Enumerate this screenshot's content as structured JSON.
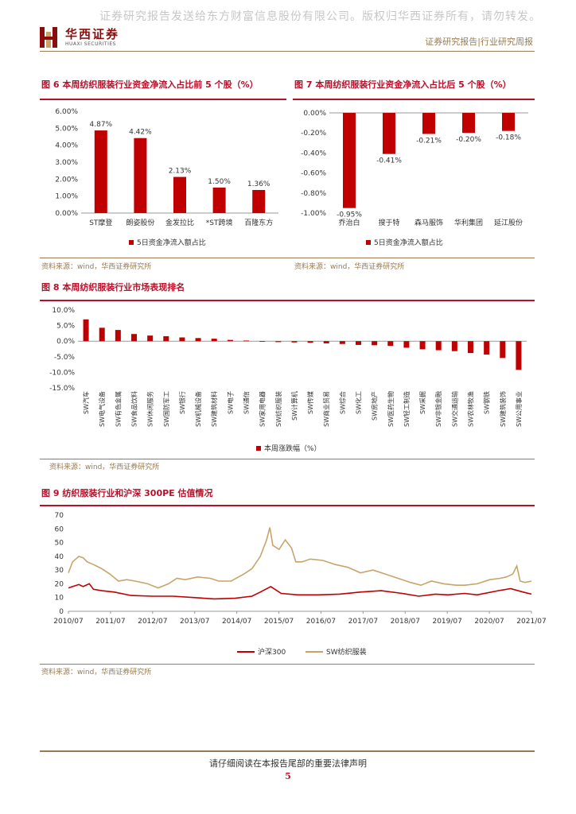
{
  "header": {
    "watermark": "证券研究报告发送给东方财富信息股份有限公司。版权归华西证券所有，请勿转发。",
    "logo_cn": "华西证券",
    "logo_en": "HUAXI SECURITIES",
    "report_type": "证券研究报告|行业研究周报"
  },
  "colors": {
    "red": "#c00000",
    "tan": "#c8a46b",
    "gold": "#9a7b50"
  },
  "figures": {
    "fig6": {
      "title": "图 6 本周纺织服装行业资金净流入占比前 5 个股（%）",
      "source": "资料来源：wind，华西证券研究所"
    },
    "fig7": {
      "title": "图 7 本周纺织服装行业资金净流入占比后 5 个股（%）",
      "source": "资料来源：wind，华西证券研究所"
    },
    "fig8": {
      "title": "图 8 本周纺织服装行业市场表现排名",
      "source": "资料来源：wind，华西证券研究所"
    },
    "fig9": {
      "title": "图 9 纺织服装行业和沪深 300PE 估值情况",
      "source": "资料来源：wind，华西证券研究所"
    }
  },
  "chart_data": [
    {
      "id": "fig6",
      "type": "bar",
      "categories": [
        "ST摩登",
        "朗姿股份",
        "金发拉比",
        "*ST跨境",
        "百隆东方"
      ],
      "values": [
        4.87,
        4.42,
        2.13,
        1.5,
        1.36
      ],
      "data_labels": [
        "4.87%",
        "4.42%",
        "2.13%",
        "1.50%",
        "1.36%"
      ],
      "yticks": [
        "0.00%",
        "1.00%",
        "2.00%",
        "3.00%",
        "4.00%",
        "5.00%",
        "6.00%"
      ],
      "ylim": [
        0,
        6
      ],
      "legend": "5日资金净流入额占比"
    },
    {
      "id": "fig7",
      "type": "bar",
      "categories": [
        "乔治白",
        "搜于特",
        "森马服饰",
        "华利集团",
        "延江股份"
      ],
      "values": [
        -0.95,
        -0.41,
        -0.21,
        -0.2,
        -0.18
      ],
      "data_labels": [
        "-0.95%",
        "-0.41%",
        "-0.21%",
        "-0.20%",
        "-0.18%"
      ],
      "yticks": [
        "0.00%",
        "-0.20%",
        "-0.40%",
        "-0.60%",
        "-0.80%",
        "-1.00%"
      ],
      "ylim": [
        -1,
        0
      ],
      "legend": "5日资金净流入额占比"
    },
    {
      "id": "fig8",
      "type": "bar",
      "categories": [
        "SW汽车",
        "SW电气设备",
        "SW有色金属",
        "SW食品饮料",
        "SW休闲服务",
        "SW国防军工",
        "SW银行",
        "SW机械设备",
        "SW建筑材料",
        "SW电子",
        "SW通信",
        "SW家用电器",
        "SW纺织服装",
        "SW计算机",
        "SW传媒",
        "SW商业贸易",
        "SW综合",
        "SW化工",
        "SW房地产",
        "SW医药生物",
        "SW轻工制造",
        "SW采掘",
        "SW非银金融",
        "SW交通运输",
        "SW农林牧渔",
        "SW钢铁",
        "SW建筑装饰",
        "SW公用事业"
      ],
      "values": [
        7.0,
        4.3,
        3.6,
        2.3,
        1.8,
        1.6,
        1.2,
        1.0,
        0.8,
        0.4,
        0.2,
        -0.2,
        -0.3,
        -0.4,
        -0.5,
        -0.7,
        -0.9,
        -1.2,
        -1.3,
        -1.5,
        -2.1,
        -2.6,
        -2.9,
        -3.2,
        -3.8,
        -4.3,
        -5.4,
        -9.2
      ],
      "yticks": [
        "10.0%",
        "5.0%",
        "0.0%",
        "-5.0%",
        "-10.0%",
        "-15.0%"
      ],
      "ylim": [
        -15,
        10
      ],
      "legend": "本周涨跌幅（%）"
    },
    {
      "id": "fig9",
      "type": "line",
      "x_ticks": [
        "2010/07",
        "2011/07",
        "2012/07",
        "2013/07",
        "2014/07",
        "2015/07",
        "2016/07",
        "2017/07",
        "2018/07",
        "2019/07",
        "2020/07",
        "2021/07"
      ],
      "yticks": [
        "0",
        "10",
        "20",
        "30",
        "40",
        "50",
        "60",
        "70"
      ],
      "ylim": [
        0,
        70
      ],
      "xlim": [
        2010.5,
        2021.6
      ],
      "series": [
        {
          "name": "沪深300",
          "points": [
            [
              2010.5,
              17
            ],
            [
              2010.6,
              18
            ],
            [
              2010.75,
              19.5
            ],
            [
              2010.85,
              18
            ],
            [
              2011.0,
              20
            ],
            [
              2011.1,
              16
            ],
            [
              2011.3,
              15
            ],
            [
              2011.6,
              14
            ],
            [
              2012.0,
              11.5
            ],
            [
              2012.5,
              11
            ],
            [
              2013.0,
              11
            ],
            [
              2013.5,
              10
            ],
            [
              2014.0,
              9
            ],
            [
              2014.5,
              9.5
            ],
            [
              2014.9,
              11
            ],
            [
              2015.1,
              14
            ],
            [
              2015.35,
              18
            ],
            [
              2015.45,
              16
            ],
            [
              2015.6,
              13
            ],
            [
              2016.0,
              12
            ],
            [
              2016.5,
              12
            ],
            [
              2017.0,
              12.5
            ],
            [
              2017.5,
              14
            ],
            [
              2018.0,
              15
            ],
            [
              2018.5,
              13
            ],
            [
              2018.9,
              11
            ],
            [
              2019.3,
              12.5
            ],
            [
              2019.6,
              12
            ],
            [
              2020.0,
              13
            ],
            [
              2020.3,
              12
            ],
            [
              2020.8,
              15
            ],
            [
              2021.1,
              16.5
            ],
            [
              2021.4,
              14
            ],
            [
              2021.6,
              12.5
            ]
          ]
        },
        {
          "name": "SW纺织服装",
          "points": [
            [
              2010.5,
              28
            ],
            [
              2010.6,
              36
            ],
            [
              2010.75,
              40
            ],
            [
              2010.85,
              39
            ],
            [
              2010.95,
              36
            ],
            [
              2011.1,
              34
            ],
            [
              2011.3,
              31
            ],
            [
              2011.5,
              27
            ],
            [
              2011.7,
              22
            ],
            [
              2011.9,
              23
            ],
            [
              2012.1,
              22
            ],
            [
              2012.4,
              20
            ],
            [
              2012.65,
              17
            ],
            [
              2012.9,
              20
            ],
            [
              2013.1,
              24
            ],
            [
              2013.3,
              23
            ],
            [
              2013.6,
              25
            ],
            [
              2013.9,
              24
            ],
            [
              2014.1,
              22
            ],
            [
              2014.4,
              22
            ],
            [
              2014.7,
              27
            ],
            [
              2014.9,
              31
            ],
            [
              2015.1,
              40
            ],
            [
              2015.25,
              52
            ],
            [
              2015.33,
              61
            ],
            [
              2015.4,
              48
            ],
            [
              2015.55,
              45
            ],
            [
              2015.7,
              52
            ],
            [
              2015.85,
              46
            ],
            [
              2015.95,
              36
            ],
            [
              2016.1,
              36
            ],
            [
              2016.3,
              38
            ],
            [
              2016.6,
              37
            ],
            [
              2016.9,
              34
            ],
            [
              2017.2,
              32
            ],
            [
              2017.5,
              28
            ],
            [
              2017.8,
              30
            ],
            [
              2018.1,
              27
            ],
            [
              2018.4,
              24
            ],
            [
              2018.7,
              21
            ],
            [
              2018.95,
              19
            ],
            [
              2019.2,
              22
            ],
            [
              2019.5,
              20
            ],
            [
              2019.8,
              19
            ],
            [
              2020.0,
              19
            ],
            [
              2020.3,
              20
            ],
            [
              2020.6,
              23
            ],
            [
              2020.85,
              24
            ],
            [
              2021.0,
              25
            ],
            [
              2021.15,
              27
            ],
            [
              2021.25,
              33
            ],
            [
              2021.33,
              22
            ],
            [
              2021.45,
              21
            ],
            [
              2021.6,
              22
            ]
          ]
        }
      ]
    }
  ],
  "footer": {
    "disclaimer": "请仔细阅读在本报告尾部的重要法律声明",
    "page": "5"
  }
}
